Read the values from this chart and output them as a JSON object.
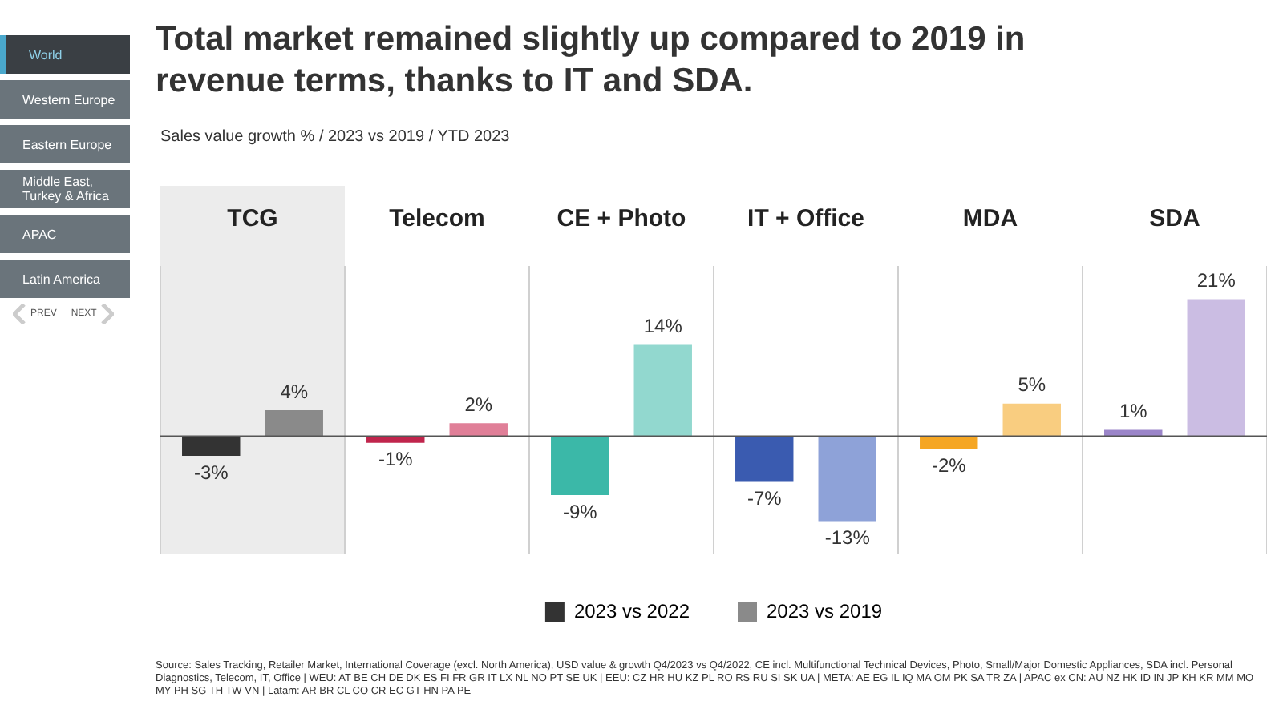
{
  "chart_data": {
    "type": "bar",
    "title": "Total market remained slightly up compared to 2019 in revenue terms, thanks to IT and SDA.",
    "subtitle": "Sales value growth % / 2023 vs 2019 / YTD 2023",
    "categories": [
      "TCG",
      "Telecom",
      "CE + Photo",
      "IT + Office",
      "MDA",
      "SDA"
    ],
    "series": [
      {
        "name": "2023 vs 2022",
        "color": "#333333",
        "colors": [
          "#333333",
          "#c0254c",
          "#3bb8a8",
          "#3a5bb0",
          "#f5a623",
          "#9b85c9"
        ],
        "values": [
          -3,
          -1,
          -9,
          -7,
          -2,
          1
        ],
        "value_labels": [
          "-3%",
          "-1%",
          "-9%",
          "-7%",
          "-2%",
          "1%"
        ]
      },
      {
        "name": "2023 vs 2019",
        "color": "#8a8a8a",
        "colors": [
          "#8a8a8a",
          "#e07f98",
          "#92d8cf",
          "#8ea2d8",
          "#f9cd80",
          "#cbbde3"
        ],
        "values": [
          4,
          2,
          14,
          -13,
          5,
          21
        ],
        "value_labels": [
          "4%",
          "2%",
          "14%",
          "-13%",
          "5%",
          "21%"
        ]
      }
    ],
    "bands": [
      {
        "axis": "x",
        "from": "TCG",
        "to": "TCG",
        "color": "#ececec"
      }
    ],
    "grid": "x",
    "legend": "bottom",
    "annotations": [
      "World",
      "Western Europe",
      "Eastern Europe",
      "Middle East, Turkey & Africa",
      "APAC",
      "Latin America",
      "PREV",
      "NEXT",
      "Source: Sales Tracking, Retailer Market, International Coverage (excl. North America), USD value & growth Q4/2023 vs Q4/2022, CE incl. Multifunctional Technical Devices, Photo, Small/Major Domestic Appliances, SDA incl. Personal Diagnostics, Telecom, IT, Office | WEU: AT BE CH DE DK ES FI FR GR IT LX NL NO PT SE UK | EEU: CZ HR HU KZ PL RO RS RU SI SK UA | META: AE EG IL IQ MA OM PK SA TR ZA | APAC ex CN: AU NZ HK ID IN JP KH KR MM MO MY PH SG TH TW VN | Latam: AR BR CL CO CR EC GT HN PA PE"
    ]
  }
}
